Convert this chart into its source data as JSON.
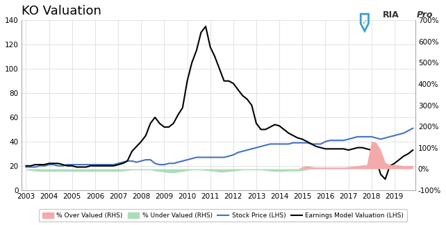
{
  "title": "KO Valuation",
  "title_fontsize": 13,
  "background_color": "#ffffff",
  "grid_color": "#dddddd",
  "years": [
    2003,
    2004,
    2005,
    2006,
    2007,
    2008,
    2009,
    2010,
    2011,
    2012,
    2013,
    2014,
    2015,
    2016,
    2017,
    2018,
    2019
  ],
  "xlim_start": 2002.8,
  "xlim_end": 2019.9,
  "lhs_ylim": [
    0,
    140
  ],
  "lhs_yticks": [
    0,
    20,
    40,
    60,
    80,
    100,
    120,
    140
  ],
  "rhs_ylim": [
    -100,
    700
  ],
  "rhs_yticks": [
    -100,
    0,
    100,
    200,
    300,
    400,
    500,
    600,
    700
  ],
  "rhs_yticklabels": [
    "-100%",
    "0%",
    "100%",
    "200%",
    "300%",
    "400%",
    "500%",
    "600%",
    "700%"
  ],
  "stock_price_color": "#4472C4",
  "earnings_model_color": "#000000",
  "over_valued_color": "#F4AAAA",
  "under_valued_color": "#AADDB8",
  "logo_shield_color": "#3B9FC8",
  "legend_labels": [
    "% Over Valued (RHS)",
    "% Under Valued (RHS)",
    "Stock Price (LHS)",
    "Earnings Model Valuation (LHS)"
  ],
  "x_data": [
    2003.0,
    2003.2,
    2003.4,
    2003.6,
    2003.8,
    2004.0,
    2004.2,
    2004.4,
    2004.6,
    2004.8,
    2005.0,
    2005.2,
    2005.4,
    2005.6,
    2005.8,
    2006.0,
    2006.2,
    2006.4,
    2006.6,
    2006.8,
    2007.0,
    2007.2,
    2007.4,
    2007.6,
    2007.8,
    2008.0,
    2008.2,
    2008.4,
    2008.6,
    2008.8,
    2009.0,
    2009.2,
    2009.4,
    2009.6,
    2009.8,
    2010.0,
    2010.2,
    2010.4,
    2010.6,
    2010.8,
    2011.0,
    2011.2,
    2011.4,
    2011.6,
    2011.8,
    2012.0,
    2012.2,
    2012.4,
    2012.6,
    2012.8,
    2013.0,
    2013.2,
    2013.4,
    2013.6,
    2013.8,
    2014.0,
    2014.2,
    2014.4,
    2014.6,
    2014.8,
    2015.0,
    2015.2,
    2015.4,
    2015.6,
    2015.8,
    2016.0,
    2016.2,
    2016.4,
    2016.6,
    2016.8,
    2017.0,
    2017.2,
    2017.4,
    2017.6,
    2017.8,
    2018.0,
    2018.2,
    2018.4,
    2018.6,
    2018.8,
    2019.0,
    2019.2,
    2019.4,
    2019.6,
    2019.8
  ],
  "stock_price": [
    19,
    19,
    19,
    20,
    20,
    21,
    21,
    20,
    20,
    21,
    21,
    21,
    21,
    21,
    21,
    21,
    21,
    21,
    21,
    21,
    22,
    23,
    24,
    24,
    23,
    24,
    25,
    25,
    22,
    21,
    21,
    22,
    22,
    23,
    24,
    25,
    26,
    27,
    27,
    27,
    27,
    27,
    27,
    27,
    28,
    29,
    31,
    32,
    33,
    34,
    35,
    36,
    37,
    38,
    38,
    38,
    38,
    38,
    39,
    39,
    39,
    39,
    38,
    38,
    38,
    40,
    41,
    41,
    41,
    41,
    42,
    43,
    44,
    44,
    44,
    44,
    43,
    42,
    43,
    44,
    45,
    46,
    47,
    49,
    51
  ],
  "earnings_model": [
    20,
    20,
    21,
    21,
    21,
    22,
    22,
    22,
    21,
    20,
    20,
    19,
    19,
    19,
    20,
    20,
    20,
    20,
    20,
    20,
    21,
    22,
    24,
    32,
    36,
    40,
    45,
    55,
    60,
    55,
    52,
    52,
    55,
    62,
    68,
    90,
    105,
    115,
    130,
    135,
    118,
    110,
    100,
    90,
    90,
    88,
    83,
    78,
    75,
    70,
    55,
    50,
    50,
    52,
    54,
    53,
    50,
    47,
    45,
    43,
    42,
    40,
    38,
    36,
    35,
    34,
    34,
    34,
    34,
    34,
    33,
    34,
    35,
    35,
    34,
    33,
    26,
    13,
    9,
    20,
    22,
    25,
    28,
    30,
    33
  ],
  "pct_over_valued": [
    0,
    0,
    0,
    0,
    0,
    0,
    0,
    0,
    0,
    0,
    0,
    0,
    0,
    0,
    0,
    0,
    0,
    0,
    0,
    0,
    0,
    0,
    0,
    0,
    0,
    0,
    0,
    0,
    0,
    0,
    0,
    0,
    0,
    0,
    0,
    0,
    0,
    0,
    0,
    0,
    0,
    0,
    0,
    0,
    0,
    0,
    0,
    0,
    0,
    0,
    0,
    0,
    0,
    0,
    0,
    0,
    0,
    0,
    0,
    0,
    10,
    15,
    10,
    8,
    8,
    8,
    8,
    8,
    8,
    8,
    10,
    12,
    15,
    18,
    20,
    130,
    125,
    90,
    30,
    20,
    20,
    18,
    15,
    15,
    15
  ],
  "pct_under_valued": [
    5,
    8,
    10,
    12,
    12,
    12,
    12,
    12,
    12,
    12,
    12,
    12,
    12,
    12,
    12,
    12,
    12,
    12,
    12,
    12,
    12,
    10,
    8,
    5,
    5,
    5,
    5,
    5,
    10,
    12,
    15,
    18,
    18,
    15,
    12,
    8,
    5,
    5,
    5,
    8,
    10,
    12,
    15,
    15,
    12,
    10,
    8,
    5,
    5,
    5,
    5,
    5,
    8,
    10,
    12,
    12,
    12,
    10,
    10,
    10,
    8,
    5,
    0,
    0,
    0,
    0,
    0,
    0,
    0,
    0,
    0,
    0,
    0,
    0,
    0,
    0,
    0,
    0,
    0,
    0,
    0,
    0,
    0,
    0,
    0
  ]
}
